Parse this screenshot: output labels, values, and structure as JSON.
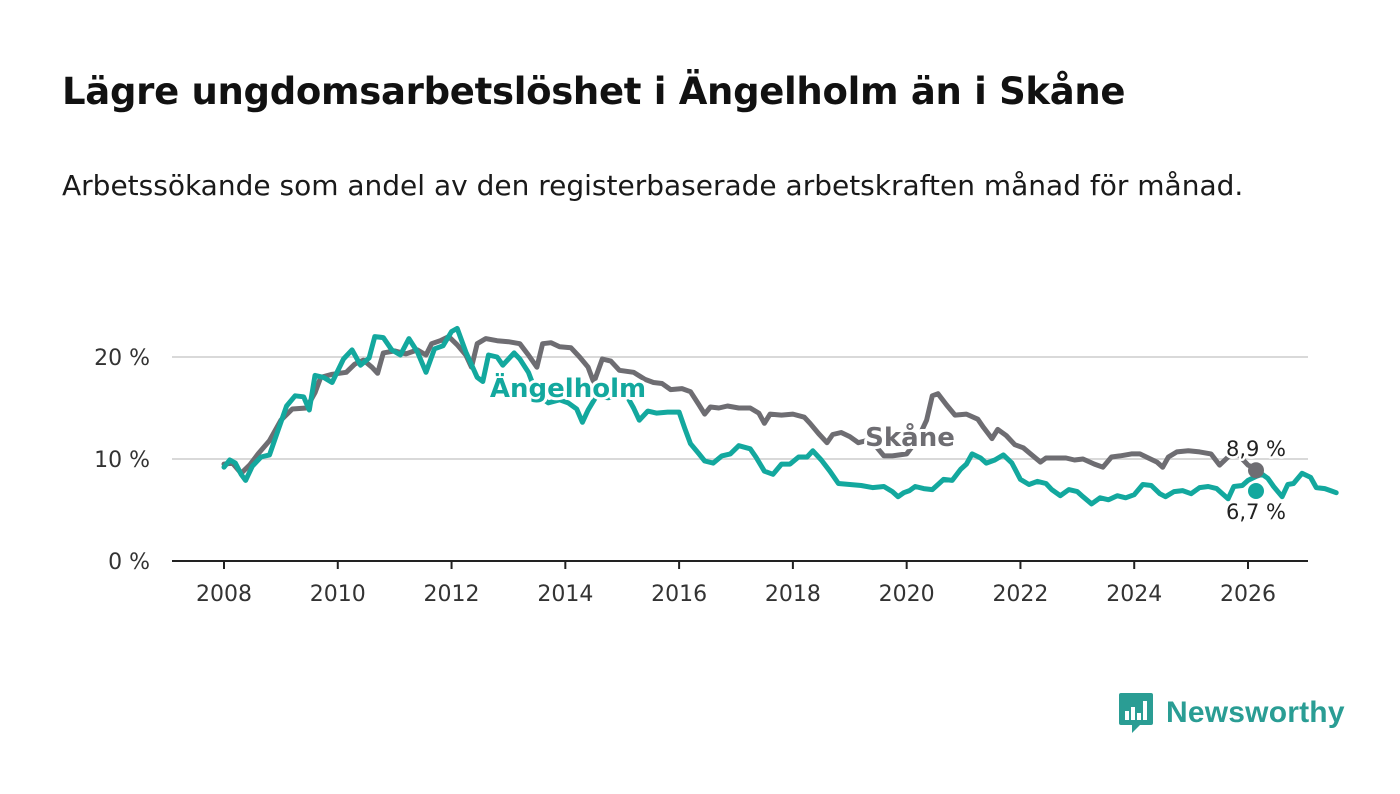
{
  "title": "Lägre ungdomsarbetslöshet i Ängelholm än i Skåne",
  "subtitle": "Arbetssökande som andel av den registerbaserade arbetskraften månad för månad.",
  "brand": {
    "name": "Newsworthy"
  },
  "colors": {
    "angelholm": "#13a89e",
    "skane": "#6e6d72",
    "grid": "#d9d9d9",
    "axis": "#222222"
  },
  "chart_data": {
    "type": "line",
    "title": "Lägre ungdomsarbetslöshet i Ängelholm än i Skåne",
    "xlabel": "",
    "ylabel": "",
    "xlim": [
      2007.1,
      2027.1
    ],
    "ylim": [
      0,
      22
    ],
    "x_ticks": [
      2008,
      2010,
      2012,
      2014,
      2016,
      2018,
      2020,
      2022,
      2024,
      2026
    ],
    "x_tick_labels": [
      "2008",
      "2010",
      "2012",
      "2014",
      "2016",
      "2018",
      "2020",
      "2022",
      "2024",
      "2026"
    ],
    "y_ticks": [
      0,
      10,
      20
    ],
    "y_tick_labels": [
      "0 %",
      "10 %",
      "20 %"
    ],
    "grid": true,
    "series": [
      {
        "name": "Skåne",
        "label": "Skåne",
        "last_value_label": "8,9 %",
        "points": [
          [
            2008.0,
            9.5
          ],
          [
            2008.15,
            9.6
          ],
          [
            2008.3,
            8.6
          ],
          [
            2008.45,
            9.4
          ],
          [
            2008.6,
            10.5
          ],
          [
            2008.8,
            11.8
          ],
          [
            2009.0,
            13.8
          ],
          [
            2009.2,
            14.9
          ],
          [
            2009.45,
            15.0
          ],
          [
            2009.6,
            16.5
          ],
          [
            2009.7,
            18.0
          ],
          [
            2009.9,
            18.3
          ],
          [
            2010.15,
            18.5
          ],
          [
            2010.3,
            19.3
          ],
          [
            2010.45,
            19.7
          ],
          [
            2010.6,
            19.0
          ],
          [
            2010.7,
            18.4
          ],
          [
            2010.8,
            20.4
          ],
          [
            2011.0,
            20.6
          ],
          [
            2011.2,
            20.3
          ],
          [
            2011.4,
            20.7
          ],
          [
            2011.55,
            20.2
          ],
          [
            2011.65,
            21.3
          ],
          [
            2011.8,
            21.6
          ],
          [
            2011.95,
            22.0
          ],
          [
            2012.1,
            21.2
          ],
          [
            2012.25,
            20.2
          ],
          [
            2012.35,
            19.0
          ],
          [
            2012.45,
            21.3
          ],
          [
            2012.6,
            21.8
          ],
          [
            2012.8,
            21.6
          ],
          [
            2013.0,
            21.5
          ],
          [
            2013.2,
            21.3
          ],
          [
            2013.35,
            20.2
          ],
          [
            2013.5,
            19.0
          ],
          [
            2013.6,
            21.3
          ],
          [
            2013.75,
            21.4
          ],
          [
            2013.9,
            21.0
          ],
          [
            2014.1,
            20.9
          ],
          [
            2014.25,
            20.0
          ],
          [
            2014.4,
            19.0
          ],
          [
            2014.5,
            17.5
          ],
          [
            2014.65,
            19.8
          ],
          [
            2014.8,
            19.6
          ],
          [
            2014.95,
            18.7
          ],
          [
            2015.2,
            18.5
          ],
          [
            2015.4,
            17.8
          ],
          [
            2015.55,
            17.5
          ],
          [
            2015.7,
            17.4
          ],
          [
            2015.85,
            16.8
          ],
          [
            2016.05,
            16.9
          ],
          [
            2016.2,
            16.6
          ],
          [
            2016.35,
            15.3
          ],
          [
            2016.45,
            14.4
          ],
          [
            2016.55,
            15.1
          ],
          [
            2016.7,
            15.0
          ],
          [
            2016.85,
            15.2
          ],
          [
            2017.05,
            15.0
          ],
          [
            2017.25,
            15.0
          ],
          [
            2017.4,
            14.5
          ],
          [
            2017.5,
            13.5
          ],
          [
            2017.6,
            14.4
          ],
          [
            2017.8,
            14.3
          ],
          [
            2018.0,
            14.4
          ],
          [
            2018.2,
            14.1
          ],
          [
            2018.3,
            13.5
          ],
          [
            2018.45,
            12.5
          ],
          [
            2018.6,
            11.6
          ],
          [
            2018.7,
            12.4
          ],
          [
            2018.85,
            12.6
          ],
          [
            2019.0,
            12.2
          ],
          [
            2019.15,
            11.6
          ],
          [
            2019.3,
            11.8
          ],
          [
            2019.45,
            11.3
          ],
          [
            2019.6,
            10.3
          ],
          [
            2019.75,
            10.3
          ],
          [
            2020.0,
            10.5
          ],
          [
            2020.2,
            12.0
          ],
          [
            2020.35,
            13.8
          ],
          [
            2020.45,
            16.2
          ],
          [
            2020.55,
            16.4
          ],
          [
            2020.7,
            15.3
          ],
          [
            2020.85,
            14.3
          ],
          [
            2021.05,
            14.4
          ],
          [
            2021.25,
            13.9
          ],
          [
            2021.35,
            13.1
          ],
          [
            2021.5,
            12.0
          ],
          [
            2021.6,
            12.9
          ],
          [
            2021.75,
            12.3
          ],
          [
            2021.9,
            11.4
          ],
          [
            2022.05,
            11.1
          ],
          [
            2022.2,
            10.4
          ],
          [
            2022.35,
            9.7
          ],
          [
            2022.45,
            10.1
          ],
          [
            2022.6,
            10.1
          ],
          [
            2022.8,
            10.1
          ],
          [
            2022.95,
            9.9
          ],
          [
            2023.1,
            10.0
          ],
          [
            2023.3,
            9.5
          ],
          [
            2023.45,
            9.2
          ],
          [
            2023.6,
            10.2
          ],
          [
            2023.75,
            10.3
          ],
          [
            2023.95,
            10.5
          ],
          [
            2024.1,
            10.5
          ],
          [
            2024.25,
            10.1
          ],
          [
            2024.4,
            9.7
          ],
          [
            2024.5,
            9.2
          ],
          [
            2024.6,
            10.2
          ],
          [
            2024.75,
            10.7
          ],
          [
            2024.95,
            10.8
          ],
          [
            2025.15,
            10.7
          ],
          [
            2025.35,
            10.5
          ],
          [
            2025.5,
            9.4
          ],
          [
            2025.65,
            10.2
          ],
          [
            2025.8,
            10.6
          ],
          [
            2026.0,
            9.4
          ],
          [
            2026.2,
            8.9
          ]
        ]
      },
      {
        "name": "Ängelholm",
        "label": "Ängelholm",
        "last_value_label": "6,7 %",
        "points": [
          [
            2008.0,
            9.2
          ],
          [
            2008.1,
            9.9
          ],
          [
            2008.2,
            9.6
          ],
          [
            2008.3,
            8.5
          ],
          [
            2008.38,
            7.9
          ],
          [
            2008.5,
            9.3
          ],
          [
            2008.65,
            10.2
          ],
          [
            2008.8,
            10.4
          ],
          [
            2008.95,
            12.8
          ],
          [
            2009.1,
            15.2
          ],
          [
            2009.25,
            16.2
          ],
          [
            2009.4,
            16.1
          ],
          [
            2009.5,
            14.8
          ],
          [
            2009.6,
            18.2
          ],
          [
            2009.75,
            18.0
          ],
          [
            2009.9,
            17.5
          ],
          [
            2010.1,
            19.8
          ],
          [
            2010.25,
            20.7
          ],
          [
            2010.4,
            19.2
          ],
          [
            2010.55,
            19.9
          ],
          [
            2010.65,
            22.0
          ],
          [
            2010.8,
            21.9
          ],
          [
            2010.95,
            20.7
          ],
          [
            2011.1,
            20.2
          ],
          [
            2011.25,
            21.8
          ],
          [
            2011.4,
            20.5
          ],
          [
            2011.55,
            18.5
          ],
          [
            2011.7,
            20.8
          ],
          [
            2011.85,
            21.1
          ],
          [
            2012.0,
            22.5
          ],
          [
            2012.1,
            22.8
          ],
          [
            2012.25,
            20.5
          ],
          [
            2012.45,
            18.0
          ],
          [
            2012.55,
            17.6
          ],
          [
            2012.65,
            20.2
          ],
          [
            2012.8,
            20.0
          ],
          [
            2012.9,
            19.2
          ],
          [
            2013.1,
            20.4
          ],
          [
            2013.2,
            19.8
          ],
          [
            2013.35,
            18.5
          ],
          [
            2013.5,
            16.3
          ],
          [
            2013.7,
            15.5
          ],
          [
            2013.9,
            15.8
          ],
          [
            2014.05,
            15.5
          ],
          [
            2014.2,
            14.9
          ],
          [
            2014.3,
            13.6
          ],
          [
            2014.4,
            14.8
          ],
          [
            2014.55,
            16.2
          ],
          [
            2014.75,
            16.0
          ],
          [
            2014.95,
            16.2
          ],
          [
            2015.1,
            16.0
          ],
          [
            2015.2,
            15.0
          ],
          [
            2015.3,
            13.8
          ],
          [
            2015.45,
            14.7
          ],
          [
            2015.6,
            14.5
          ],
          [
            2015.8,
            14.6
          ],
          [
            2016.0,
            14.6
          ],
          [
            2016.1,
            13.0
          ],
          [
            2016.2,
            11.5
          ],
          [
            2016.35,
            10.5
          ],
          [
            2016.45,
            9.8
          ],
          [
            2016.6,
            9.6
          ],
          [
            2016.75,
            10.3
          ],
          [
            2016.9,
            10.5
          ],
          [
            2017.05,
            11.3
          ],
          [
            2017.25,
            11.0
          ],
          [
            2017.35,
            10.2
          ],
          [
            2017.5,
            8.8
          ],
          [
            2017.65,
            8.5
          ],
          [
            2017.8,
            9.5
          ],
          [
            2017.95,
            9.5
          ],
          [
            2018.1,
            10.2
          ],
          [
            2018.25,
            10.2
          ],
          [
            2018.35,
            10.8
          ],
          [
            2018.5,
            9.9
          ],
          [
            2018.65,
            8.8
          ],
          [
            2018.8,
            7.6
          ],
          [
            2019.0,
            7.5
          ],
          [
            2019.2,
            7.4
          ],
          [
            2019.4,
            7.2
          ],
          [
            2019.6,
            7.3
          ],
          [
            2019.75,
            6.8
          ],
          [
            2019.85,
            6.3
          ],
          [
            2019.95,
            6.7
          ],
          [
            2020.05,
            6.9
          ],
          [
            2020.15,
            7.3
          ],
          [
            2020.3,
            7.1
          ],
          [
            2020.45,
            7.0
          ],
          [
            2020.55,
            7.5
          ],
          [
            2020.65,
            8.0
          ],
          [
            2020.8,
            7.9
          ],
          [
            2020.95,
            9.0
          ],
          [
            2021.05,
            9.5
          ],
          [
            2021.15,
            10.5
          ],
          [
            2021.3,
            10.1
          ],
          [
            2021.4,
            9.6
          ],
          [
            2021.55,
            9.9
          ],
          [
            2021.7,
            10.4
          ],
          [
            2021.85,
            9.6
          ],
          [
            2022.0,
            8.0
          ],
          [
            2022.15,
            7.5
          ],
          [
            2022.3,
            7.8
          ],
          [
            2022.45,
            7.6
          ],
          [
            2022.55,
            7.0
          ],
          [
            2022.7,
            6.4
          ],
          [
            2022.85,
            7.0
          ],
          [
            2023.0,
            6.8
          ],
          [
            2023.1,
            6.3
          ],
          [
            2023.25,
            5.6
          ],
          [
            2023.4,
            6.2
          ],
          [
            2023.55,
            6.0
          ],
          [
            2023.7,
            6.4
          ],
          [
            2023.85,
            6.2
          ],
          [
            2024.0,
            6.5
          ],
          [
            2024.15,
            7.5
          ],
          [
            2024.3,
            7.4
          ],
          [
            2024.45,
            6.6
          ],
          [
            2024.55,
            6.3
          ],
          [
            2024.7,
            6.8
          ],
          [
            2024.85,
            6.9
          ],
          [
            2025.0,
            6.6
          ],
          [
            2025.15,
            7.2
          ],
          [
            2025.3,
            7.3
          ],
          [
            2025.45,
            7.1
          ],
          [
            2025.55,
            6.6
          ],
          [
            2025.65,
            6.1
          ],
          [
            2025.75,
            7.3
          ],
          [
            2025.9,
            7.4
          ],
          [
            2026.0,
            7.9
          ],
          [
            2026.15,
            8.3
          ],
          [
            2026.25,
            8.5
          ],
          [
            2026.35,
            8.1
          ],
          [
            2026.45,
            7.3
          ],
          [
            2026.6,
            6.3
          ],
          [
            2026.7,
            7.5
          ],
          [
            2026.8,
            7.6
          ],
          [
            2026.95,
            8.6
          ],
          [
            2027.1,
            8.2
          ],
          [
            2027.2,
            7.2
          ],
          [
            2027.35,
            7.1
          ],
          [
            2027.45,
            6.9
          ],
          [
            2027.55,
            6.7
          ]
        ]
      }
    ]
  }
}
